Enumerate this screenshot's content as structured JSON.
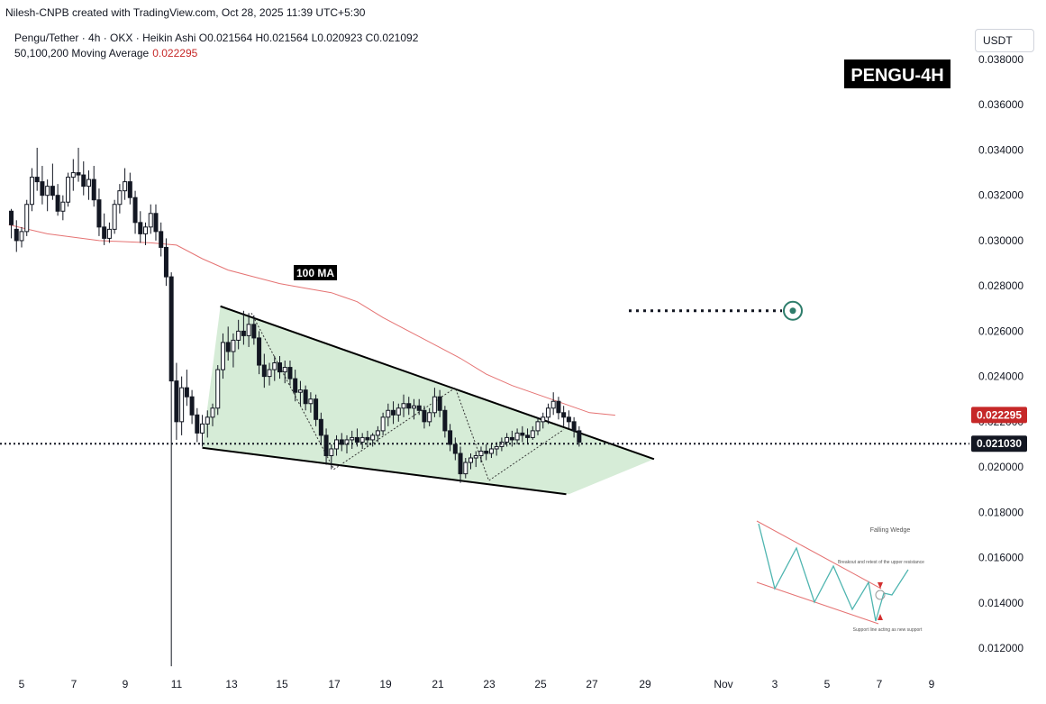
{
  "header": {
    "credit": "Nilesh-CNPB created with TradingView.com, Oct 28, 2025 11:39 UTC+5:30",
    "symbol_line": "Pengu/Tether · 4h · OKX · Heikin Ashi",
    "ohlc": {
      "open": "O0.021564",
      "high": "H0.021564",
      "low": "L0.020923",
      "close": "C0.021092"
    },
    "ma_label": "50,100,200 Moving Average",
    "ma_value": "0.022295",
    "currency": "USDT"
  },
  "annotations": {
    "title_badge": "PENGU-4H",
    "ma_badge": "100 MA",
    "inset_title": "Falling Wedge",
    "inset_note_top": "Breakout and retest of the upper resistance",
    "inset_note_bottom": "Support line acting as new support"
  },
  "colors": {
    "bull": "#26a69a",
    "candle": "#131722",
    "ma": "#e57373",
    "price_badge": "#131722",
    "ma_badge_bg": "#c62828",
    "wedge_fill": "#c8e6c9",
    "target": "#2e7d6b"
  },
  "chart_data": {
    "type": "candlestick",
    "yaxis": {
      "ticks": [
        "0.038000",
        "0.036000",
        "0.034000",
        "0.032000",
        "0.030000",
        "0.028000",
        "0.026000",
        "0.024000",
        "0.022000",
        "0.020000",
        "0.018000",
        "0.016000",
        "0.014000",
        "0.012000"
      ],
      "range": [
        0.0113,
        0.0389
      ]
    },
    "xaxis": {
      "ticks": [
        "5",
        "7",
        "9",
        "11",
        "13",
        "15",
        "17",
        "19",
        "21",
        "23",
        "25",
        "27",
        "29",
        "Nov",
        "3",
        "5",
        "7",
        "9"
      ]
    },
    "current_price": "0.021030",
    "ma_price": "0.022295",
    "target_price": 0.0269,
    "ma_line": [
      [
        4.5,
        0.0307
      ],
      [
        6,
        0.0303
      ],
      [
        8,
        0.03
      ],
      [
        10,
        0.0299
      ],
      [
        11,
        0.0298
      ],
      [
        12,
        0.0292
      ],
      [
        13,
        0.0287
      ],
      [
        14,
        0.0284
      ],
      [
        15,
        0.0281
      ],
      [
        16,
        0.0279
      ],
      [
        17,
        0.0277
      ],
      [
        18,
        0.0273
      ],
      [
        19,
        0.0266
      ],
      [
        20,
        0.026
      ],
      [
        21,
        0.0254
      ],
      [
        22,
        0.0248
      ],
      [
        23,
        0.0241
      ],
      [
        24,
        0.0236
      ],
      [
        25,
        0.0232
      ],
      [
        26,
        0.0228
      ],
      [
        27,
        0.0224
      ],
      [
        28,
        0.02229
      ]
    ],
    "candles": [
      [
        4.6,
        0.0313,
        0.0314,
        0.0301,
        0.0307
      ],
      [
        4.8,
        0.0305,
        0.0309,
        0.0295,
        0.03
      ],
      [
        5.0,
        0.03,
        0.0306,
        0.0297,
        0.0304
      ],
      [
        5.2,
        0.0304,
        0.0318,
        0.0302,
        0.0316
      ],
      [
        5.4,
        0.0316,
        0.0332,
        0.0313,
        0.0328
      ],
      [
        5.6,
        0.0328,
        0.0341,
        0.0322,
        0.0326
      ],
      [
        5.8,
        0.0326,
        0.0333,
        0.0316,
        0.032
      ],
      [
        6.0,
        0.032,
        0.0327,
        0.0313,
        0.0324
      ],
      [
        6.2,
        0.0324,
        0.0334,
        0.0318,
        0.032
      ],
      [
        6.4,
        0.032,
        0.0325,
        0.0311,
        0.0313
      ],
      [
        6.6,
        0.0313,
        0.032,
        0.0309,
        0.0317
      ],
      [
        6.8,
        0.0317,
        0.033,
        0.0315,
        0.0328
      ],
      [
        7.0,
        0.0328,
        0.0336,
        0.0322,
        0.033
      ],
      [
        7.2,
        0.033,
        0.0341,
        0.0326,
        0.0329
      ],
      [
        7.4,
        0.0329,
        0.0335,
        0.032,
        0.0324
      ],
      [
        7.6,
        0.0324,
        0.0331,
        0.0318,
        0.0327
      ],
      [
        7.8,
        0.0327,
        0.0333,
        0.0315,
        0.0318
      ],
      [
        8.0,
        0.0318,
        0.0323,
        0.0302,
        0.0306
      ],
      [
        8.2,
        0.0306,
        0.0312,
        0.0298,
        0.0301
      ],
      [
        8.4,
        0.0301,
        0.0308,
        0.0299,
        0.0305
      ],
      [
        8.6,
        0.0305,
        0.0318,
        0.0303,
        0.0316
      ],
      [
        8.8,
        0.0316,
        0.0325,
        0.0312,
        0.0322
      ],
      [
        9.0,
        0.0322,
        0.0332,
        0.0318,
        0.0326
      ],
      [
        9.2,
        0.0326,
        0.033,
        0.0316,
        0.0319
      ],
      [
        9.4,
        0.0319,
        0.0322,
        0.0303,
        0.0308
      ],
      [
        9.6,
        0.0308,
        0.0313,
        0.0299,
        0.0303
      ],
      [
        9.8,
        0.0303,
        0.0308,
        0.0298,
        0.0306
      ],
      [
        10.0,
        0.0306,
        0.0316,
        0.0303,
        0.0312
      ],
      [
        10.2,
        0.0312,
        0.0316,
        0.03,
        0.0304
      ],
      [
        10.4,
        0.0304,
        0.0308,
        0.0293,
        0.0297
      ],
      [
        10.6,
        0.0297,
        0.0301,
        0.028,
        0.0284
      ],
      [
        10.8,
        0.0284,
        0.0286,
        0.0112,
        0.0238
      ],
      [
        11.0,
        0.0238,
        0.0246,
        0.0212,
        0.022
      ],
      [
        11.2,
        0.022,
        0.024,
        0.0214,
        0.0235
      ],
      [
        11.4,
        0.0235,
        0.0243,
        0.0227,
        0.0231
      ],
      [
        11.6,
        0.0231,
        0.0234,
        0.0219,
        0.0223
      ],
      [
        11.8,
        0.0223,
        0.0226,
        0.0211,
        0.0215
      ],
      [
        12.0,
        0.0215,
        0.0223,
        0.0209,
        0.0219
      ],
      [
        12.2,
        0.0219,
        0.0225,
        0.0213,
        0.0222
      ],
      [
        12.4,
        0.0222,
        0.0228,
        0.0218,
        0.0226
      ],
      [
        12.6,
        0.0226,
        0.0245,
        0.0223,
        0.0243
      ],
      [
        12.8,
        0.0243,
        0.0259,
        0.0239,
        0.0255
      ],
      [
        13.0,
        0.0255,
        0.0262,
        0.0247,
        0.0251
      ],
      [
        13.2,
        0.0251,
        0.0259,
        0.0244,
        0.0256
      ],
      [
        13.4,
        0.0256,
        0.0265,
        0.0252,
        0.026
      ],
      [
        13.6,
        0.026,
        0.0269,
        0.0254,
        0.0258
      ],
      [
        13.8,
        0.0258,
        0.0268,
        0.0253,
        0.0263
      ],
      [
        14.0,
        0.0263,
        0.0267,
        0.0254,
        0.0257
      ],
      [
        14.2,
        0.0257,
        0.026,
        0.0241,
        0.0245
      ],
      [
        14.4,
        0.0245,
        0.025,
        0.0235,
        0.024
      ],
      [
        14.6,
        0.024,
        0.0246,
        0.0236,
        0.0243
      ],
      [
        14.8,
        0.0243,
        0.0249,
        0.0238,
        0.0246
      ],
      [
        15.0,
        0.0246,
        0.0249,
        0.0239,
        0.0242
      ],
      [
        15.2,
        0.0242,
        0.0247,
        0.0237,
        0.0244
      ],
      [
        15.4,
        0.0244,
        0.0247,
        0.0236,
        0.0239
      ],
      [
        15.6,
        0.0239,
        0.0243,
        0.0229,
        0.0233
      ],
      [
        15.8,
        0.0233,
        0.0238,
        0.0227,
        0.0234
      ],
      [
        16.0,
        0.0234,
        0.0236,
        0.0225,
        0.0228
      ],
      [
        16.2,
        0.0228,
        0.0233,
        0.0224,
        0.023
      ],
      [
        16.4,
        0.023,
        0.0232,
        0.0218,
        0.0221
      ],
      [
        16.6,
        0.0221,
        0.0224,
        0.021,
        0.0214
      ],
      [
        16.8,
        0.0214,
        0.0217,
        0.0201,
        0.0205
      ],
      [
        17.0,
        0.0205,
        0.021,
        0.0199,
        0.0208
      ],
      [
        17.2,
        0.0208,
        0.0214,
        0.0205,
        0.0212
      ],
      [
        17.4,
        0.0212,
        0.0215,
        0.0207,
        0.021
      ],
      [
        17.6,
        0.021,
        0.0214,
        0.0206,
        0.0212
      ],
      [
        17.8,
        0.0212,
        0.0216,
        0.0208,
        0.0213
      ],
      [
        18.0,
        0.0213,
        0.0217,
        0.0209,
        0.0211
      ],
      [
        18.2,
        0.0211,
        0.0215,
        0.0208,
        0.0213
      ],
      [
        18.4,
        0.0213,
        0.0216,
        0.0209,
        0.0212
      ],
      [
        18.6,
        0.0212,
        0.0215,
        0.0209,
        0.0214
      ],
      [
        18.8,
        0.0214,
        0.0218,
        0.0211,
        0.0216
      ],
      [
        19.0,
        0.0216,
        0.0224,
        0.0214,
        0.0222
      ],
      [
        19.2,
        0.0222,
        0.0228,
        0.0218,
        0.0225
      ],
      [
        19.4,
        0.0225,
        0.0229,
        0.0219,
        0.0223
      ],
      [
        19.6,
        0.0223,
        0.0228,
        0.022,
        0.0226
      ],
      [
        19.8,
        0.0226,
        0.0232,
        0.0222,
        0.0228
      ],
      [
        20.0,
        0.0228,
        0.0231,
        0.0223,
        0.0226
      ],
      [
        20.2,
        0.0226,
        0.023,
        0.0221,
        0.0227
      ],
      [
        20.4,
        0.0227,
        0.023,
        0.0223,
        0.0225
      ],
      [
        20.6,
        0.0225,
        0.0227,
        0.0217,
        0.022
      ],
      [
        20.8,
        0.022,
        0.0226,
        0.0218,
        0.0224
      ],
      [
        21.0,
        0.0224,
        0.0235,
        0.0222,
        0.0231
      ],
      [
        21.2,
        0.0231,
        0.0234,
        0.0222,
        0.0225
      ],
      [
        21.4,
        0.0225,
        0.0227,
        0.0213,
        0.0216
      ],
      [
        21.6,
        0.0216,
        0.0219,
        0.0207,
        0.021
      ],
      [
        21.8,
        0.021,
        0.0213,
        0.0203,
        0.0206
      ],
      [
        22.0,
        0.0206,
        0.0209,
        0.0193,
        0.0197
      ],
      [
        22.2,
        0.0197,
        0.0204,
        0.0195,
        0.0202
      ],
      [
        22.4,
        0.0202,
        0.0206,
        0.0199,
        0.0204
      ],
      [
        22.6,
        0.0204,
        0.0207,
        0.02,
        0.0205
      ],
      [
        22.8,
        0.0205,
        0.0209,
        0.0202,
        0.0207
      ],
      [
        23.0,
        0.0207,
        0.021,
        0.0203,
        0.0206
      ],
      [
        23.2,
        0.0206,
        0.021,
        0.0204,
        0.0208
      ],
      [
        23.4,
        0.0208,
        0.0211,
        0.0205,
        0.0209
      ],
      [
        23.6,
        0.0209,
        0.0213,
        0.0207,
        0.0211
      ],
      [
        23.8,
        0.0211,
        0.0215,
        0.0209,
        0.0213
      ],
      [
        24.0,
        0.0213,
        0.0216,
        0.0209,
        0.0212
      ],
      [
        24.2,
        0.0212,
        0.0217,
        0.021,
        0.0215
      ],
      [
        24.4,
        0.0215,
        0.0218,
        0.0211,
        0.0214
      ],
      [
        24.6,
        0.0214,
        0.0217,
        0.021,
        0.0213
      ],
      [
        24.8,
        0.0213,
        0.0218,
        0.0212,
        0.0216
      ],
      [
        25.0,
        0.0216,
        0.0222,
        0.0214,
        0.022
      ],
      [
        25.2,
        0.022,
        0.0224,
        0.0217,
        0.0222
      ],
      [
        25.4,
        0.0222,
        0.0228,
        0.0219,
        0.0226
      ],
      [
        25.6,
        0.0226,
        0.0233,
        0.0223,
        0.0229
      ],
      [
        25.8,
        0.0229,
        0.0231,
        0.0221,
        0.0224
      ],
      [
        26.0,
        0.0224,
        0.0227,
        0.0218,
        0.0222
      ],
      [
        26.2,
        0.0222,
        0.0225,
        0.0217,
        0.022
      ],
      [
        26.4,
        0.022,
        0.0222,
        0.0213,
        0.0216
      ],
      [
        26.6,
        0.0216,
        0.0218,
        0.0209,
        0.0211
      ]
    ],
    "wedge": {
      "upper": [
        [
          12.7,
          0.0271
        ],
        [
          29.5,
          0.02035
        ]
      ],
      "lower": [
        [
          12.0,
          0.02085
        ],
        [
          26.1,
          0.0188
        ]
      ]
    }
  }
}
